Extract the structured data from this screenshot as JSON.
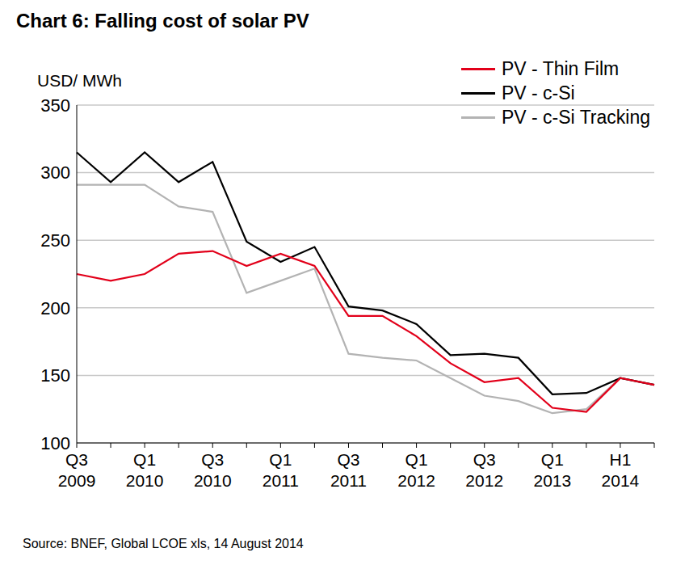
{
  "chart_data": {
    "type": "line",
    "title": "Chart 6: Falling cost of solar PV",
    "y_label": "USD/ MWh",
    "source": "Source: BNEF, Global LCOE xls, 14 August 2014",
    "categories": [
      "Q3 2009",
      null,
      "Q1 2010",
      null,
      "Q3 2010",
      null,
      "Q1 2011",
      null,
      "Q3 2011",
      null,
      "Q1 2012",
      null,
      "Q3 2012",
      null,
      "Q1 2013",
      null,
      "H1 2014",
      null
    ],
    "series": [
      {
        "name": "PV - Thin Film",
        "color": "#e2001a",
        "values": [
          225,
          220,
          225,
          240,
          242,
          231,
          240,
          231,
          194,
          194,
          179,
          159,
          145,
          148,
          126,
          123,
          148,
          143
        ]
      },
      {
        "name": "PV - c-Si",
        "color": "#000000",
        "values": [
          315,
          293,
          315,
          293,
          308,
          249,
          234,
          245,
          201,
          198,
          188,
          165,
          166,
          163,
          136,
          137,
          148,
          143
        ]
      },
      {
        "name": "PV - c-Si Tracking",
        "color": "#b3b3b3",
        "values": [
          291,
          291,
          291,
          275,
          271,
          211,
          220,
          229,
          166,
          163,
          161,
          148,
          135,
          131,
          122,
          125,
          148,
          143
        ]
      }
    ],
    "ylim": [
      100,
      350
    ],
    "yticks": [
      100,
      150,
      200,
      250,
      300,
      350
    ],
    "grid": true,
    "legend": "upper right"
  }
}
